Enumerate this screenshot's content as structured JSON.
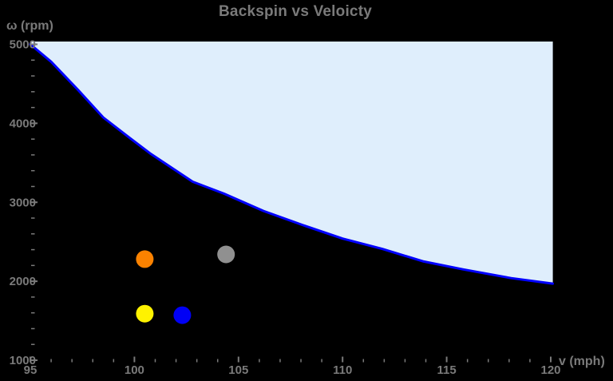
{
  "colors": {
    "background": "#000000",
    "text": "#7a7a7a",
    "tick": "#7a7a7a",
    "curve": "#0000ff",
    "region_fill": "#dfeefc"
  },
  "chart_data": {
    "type": "line",
    "title": "Backspin vs Veloicty",
    "xlabel": "v (mph)",
    "ylabel": "ω (rpm)",
    "xlim": [
      95,
      120.1
    ],
    "ylim": [
      1000,
      5050
    ],
    "x_ticks": [
      95,
      100,
      105,
      110,
      115,
      120
    ],
    "x_minor_tick_step": 1,
    "y_ticks": [
      1000,
      2000,
      3000,
      4000,
      5000
    ],
    "y_minor_tick_step": 200,
    "grid": false,
    "legend": false,
    "region": {
      "name": "allowed-region-above-curve",
      "fill": "#dfeefc",
      "description": "light blue shaded area between boundary curve and top of plot"
    },
    "boundary_curve": {
      "name": "spin-velocity-boundary",
      "color": "#0000ff",
      "stroke_width": 3,
      "points": [
        [
          95.0,
          5000
        ],
        [
          96.0,
          4780
        ],
        [
          97.3,
          4420
        ],
        [
          98.5,
          4075
        ],
        [
          99.8,
          3810
        ],
        [
          100.8,
          3610
        ],
        [
          102.8,
          3260
        ],
        [
          104.3,
          3110
        ],
        [
          106.2,
          2890
        ],
        [
          108.1,
          2710
        ],
        [
          110.0,
          2540
        ],
        [
          111.9,
          2410
        ],
        [
          113.9,
          2250
        ],
        [
          115.8,
          2150
        ],
        [
          118.1,
          2040
        ],
        [
          120.1,
          1970
        ]
      ]
    },
    "scatter_points": [
      {
        "label": "orange",
        "x": 100.5,
        "y": 2280,
        "color": "#fb8200"
      },
      {
        "label": "gray",
        "x": 104.4,
        "y": 2340,
        "color": "#909090"
      },
      {
        "label": "yellow",
        "x": 100.5,
        "y": 1590,
        "color": "#fff200"
      },
      {
        "label": "blue",
        "x": 102.3,
        "y": 1570,
        "color": "#0000f5"
      }
    ],
    "point_radius": 11
  }
}
